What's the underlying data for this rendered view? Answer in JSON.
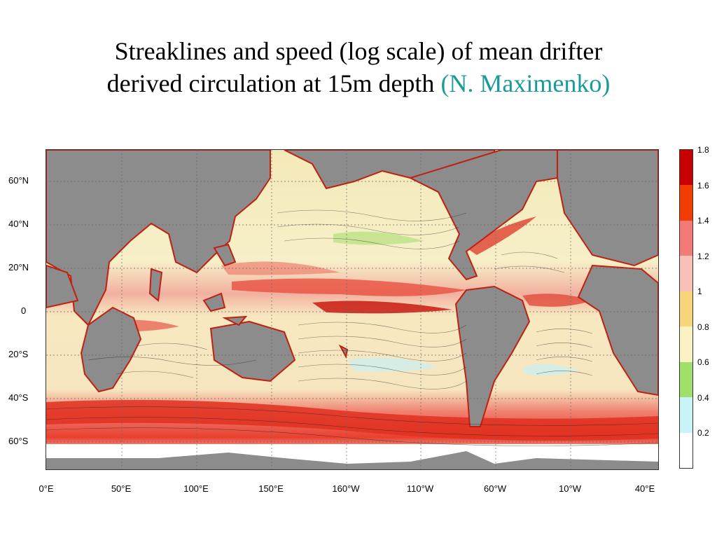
{
  "title": {
    "line1": "Streaklines and speed (log scale) of mean drifter",
    "line2": "derived circulation at 15m depth",
    "credit": "(N. Maximenko)"
  },
  "map": {
    "lat_labels": [
      "60°N",
      "40°N",
      "20°N",
      "0",
      "20°S",
      "40°S",
      "60°S"
    ],
    "lon_labels": [
      "0°E",
      "50°E",
      "100°E",
      "150°E",
      "160°W",
      "110°W",
      "60°W",
      "10°W",
      "40°E"
    ],
    "colors": {
      "land": "#8c8c8c",
      "ice": "#ffffff",
      "grid": "#666666",
      "streak": "#1a1a1a"
    }
  },
  "colorbar": {
    "labels": [
      "1.8",
      "1.6",
      "1.4",
      "1.2",
      "1",
      "0.8",
      "0.6",
      "0.4",
      "0.2"
    ],
    "colors": [
      "#c80000",
      "#f23c00",
      "#f47a78",
      "#f9c0b8",
      "#f7d67a",
      "#faf2c2",
      "#9ee06a",
      "#c8f4f8",
      "#ffffff"
    ]
  }
}
